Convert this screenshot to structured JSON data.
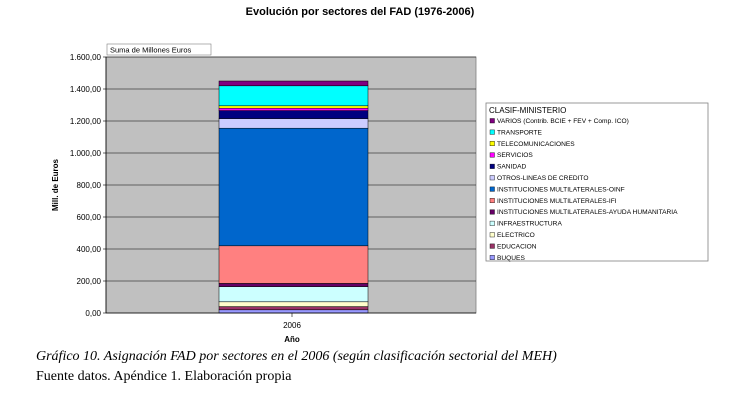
{
  "caption": "Gráfico 10. Asignación FAD por sectores en el 2006 (según clasificación sectorial del MEH)",
  "source_note": "Fuente datos. Apéndice 1. Elaboración propia",
  "colors": {
    "plot_background": "#c0c0c0",
    "gridline": "#000000"
  },
  "chart_data": {
    "type": "bar",
    "stacked": true,
    "title": "Evolución por sectores del FAD (1976-2006)",
    "pivot_label": "Suma de Millones Euros",
    "xlabel": "Año",
    "ylabel": "Mill. de Euros",
    "categories": [
      "2006"
    ],
    "ylim": [
      0,
      1600
    ],
    "yticks": [
      "0,00",
      "200,00",
      "400,00",
      "600,00",
      "800,00",
      "1.000,00",
      "1.200,00",
      "1.400,00",
      "1.600,00"
    ],
    "grid": true,
    "legend_position": "right",
    "legend_title": "CLASIF-MINISTERIO",
    "series": [
      {
        "name": "BUQUES",
        "values": [
          20
        ],
        "color": "#9999ff"
      },
      {
        "name": "EDUCACION",
        "values": [
          20
        ],
        "color": "#993366"
      },
      {
        "name": "ELECTRICO",
        "values": [
          30
        ],
        "color": "#ffffcc"
      },
      {
        "name": "INFRAESTRUCTURA",
        "values": [
          95
        ],
        "color": "#ccffff"
      },
      {
        "name": "INSTITUCIONES MULTILATERALES-AYUDA HUMANITARIA",
        "values": [
          20
        ],
        "color": "#660066"
      },
      {
        "name": "INSTITUCIONES MULTILATERALES-IFI",
        "values": [
          235
        ],
        "color": "#ff8080"
      },
      {
        "name": "INSTITUCIONES MULTILATERALES-OINF",
        "values": [
          735
        ],
        "color": "#0066cc"
      },
      {
        "name": "OTROS-LINEAS DE CREDITO",
        "values": [
          60
        ],
        "color": "#ccccff"
      },
      {
        "name": "SANIDAD",
        "values": [
          50
        ],
        "color": "#000080"
      },
      {
        "name": "SERVICIOS",
        "values": [
          15
        ],
        "color": "#ff00ff"
      },
      {
        "name": "TELECOMUNICACIONES",
        "values": [
          15
        ],
        "color": "#ffff00"
      },
      {
        "name": "TRANSPORTE",
        "values": [
          125
        ],
        "color": "#00ffff"
      },
      {
        "name": "VARIOS (Contrib. BCIE + FEV + Comp. ICO)",
        "values": [
          30
        ],
        "color": "#800080"
      }
    ]
  }
}
